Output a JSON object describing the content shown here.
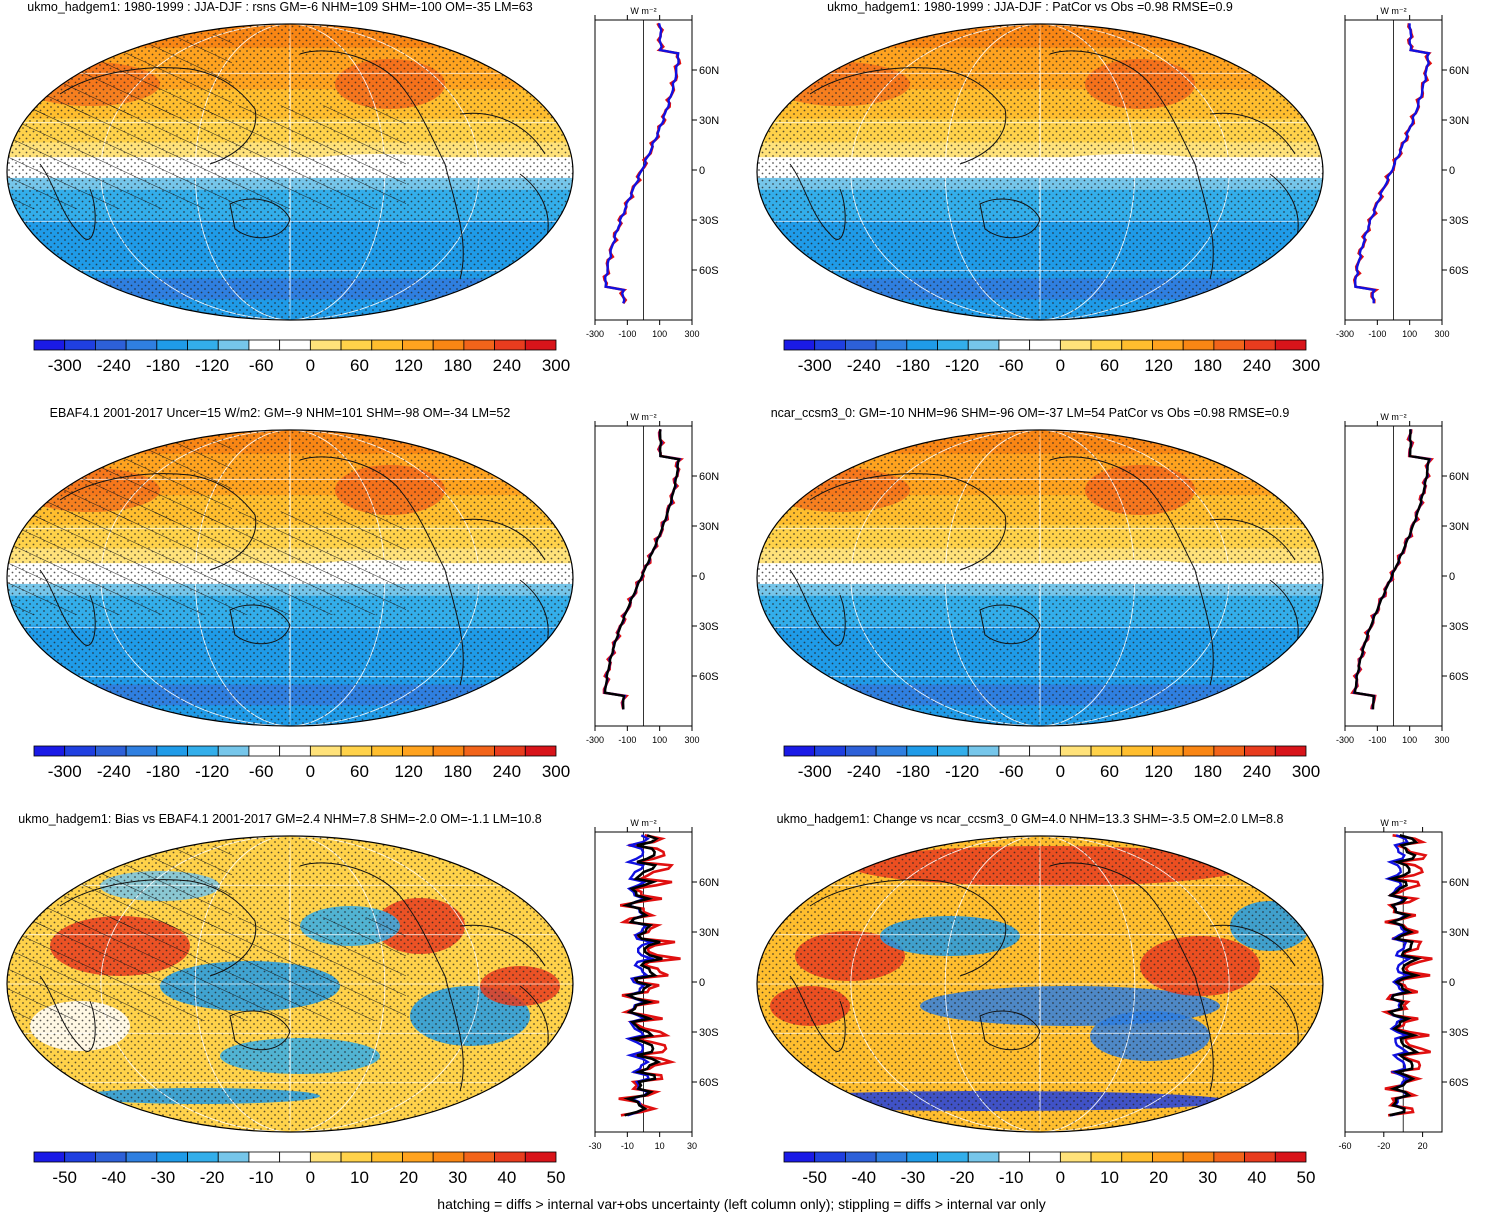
{
  "panels": [
    {
      "id": "p1",
      "title": "ukmo_hadgem1: 1980-1999 : JJA-DJF : rsns GM=-6 NHM=109 SHM=-100 OM=-35 LM=63",
      "hatched": true,
      "type": "abs"
    },
    {
      "id": "p2",
      "title": "ukmo_hadgem1: 1980-1999 : JJA-DJF : PatCor vs Obs =0.98 RMSE=0.9",
      "hatched": false,
      "type": "abs"
    },
    {
      "id": "p3",
      "title": "EBAF4.1 2001-2017 Uncer=15 W/m2: GM=-9 NHM=101 SHM=-98 OM=-34 LM=52",
      "hatched": true,
      "type": "abs"
    },
    {
      "id": "p4",
      "title": "ncar_ccsm3_0: GM=-10 NHM=96 SHM=-96 OM=-37 LM=54 PatCor vs Obs =0.98 RMSE=0.9",
      "hatched": false,
      "type": "abs"
    },
    {
      "id": "p5",
      "title": "ukmo_hadgem1: Bias vs EBAF4.1 2001-2017 GM=2.4 NHM=7.8 SHM=-2.0 OM=-1.1 LM=10.8",
      "hatched": true,
      "type": "diff"
    },
    {
      "id": "p6",
      "title": "ukmo_hadgem1: Change vs ncar_ccsm3_0 GM=4.0 NHM=13.3 SHM=-3.5 OM=2.0 LM=8.8",
      "hatched": false,
      "type": "diff"
    }
  ],
  "colorbar_abs": {
    "labels": [
      "-300",
      "-240",
      "-180",
      "-120",
      "-60",
      "0",
      "60",
      "120",
      "180",
      "240",
      "300"
    ]
  },
  "colorbar_diff": {
    "labels": [
      "-50",
      "-40",
      "-30",
      "-20",
      "-10",
      "0",
      "10",
      "20",
      "30",
      "40",
      "50"
    ]
  },
  "zonal_abs": {
    "xticks": [
      "-300",
      "-100",
      "100",
      "300"
    ],
    "xvals": [
      -300,
      -100,
      100,
      300
    ],
    "xlim": [
      -300,
      300
    ],
    "unit": "W m⁻²"
  },
  "zonal_diff_left": {
    "xticks": [
      "-30",
      "-10",
      "10",
      "30"
    ],
    "xvals": [
      -30,
      -10,
      10,
      30
    ],
    "xlim": [
      -30,
      30
    ],
    "unit": "W m⁻²"
  },
  "zonal_diff_right": {
    "xticks": [
      "-60",
      "-20",
      "20"
    ],
    "xvals": [
      -60,
      -20,
      20
    ],
    "xlim": [
      -60,
      40
    ],
    "unit": "W m⁻²"
  },
  "zonal_lat_labels": [
    "60N",
    "30N",
    "0",
    "30S",
    "60S"
  ],
  "footer": "hatching = diffs > internal var+obs uncertainty (left column only); stippling = diffs > internal var only",
  "colors": {
    "palette": [
      "#1a1ae6",
      "#1f3fe0",
      "#2d60d8",
      "#2f7fe0",
      "#1f9be8",
      "#33aeea",
      "#76c6ea",
      "#ffffff",
      "#ffffff",
      "#ffe27a",
      "#ffd24a",
      "#ffbe2e",
      "#ffa31f",
      "#f98614",
      "#f2641a",
      "#e83c1e",
      "#d8141a"
    ],
    "model_line": "#e01010",
    "obs_line": "#1010e0",
    "other_line": "#000000"
  }
}
